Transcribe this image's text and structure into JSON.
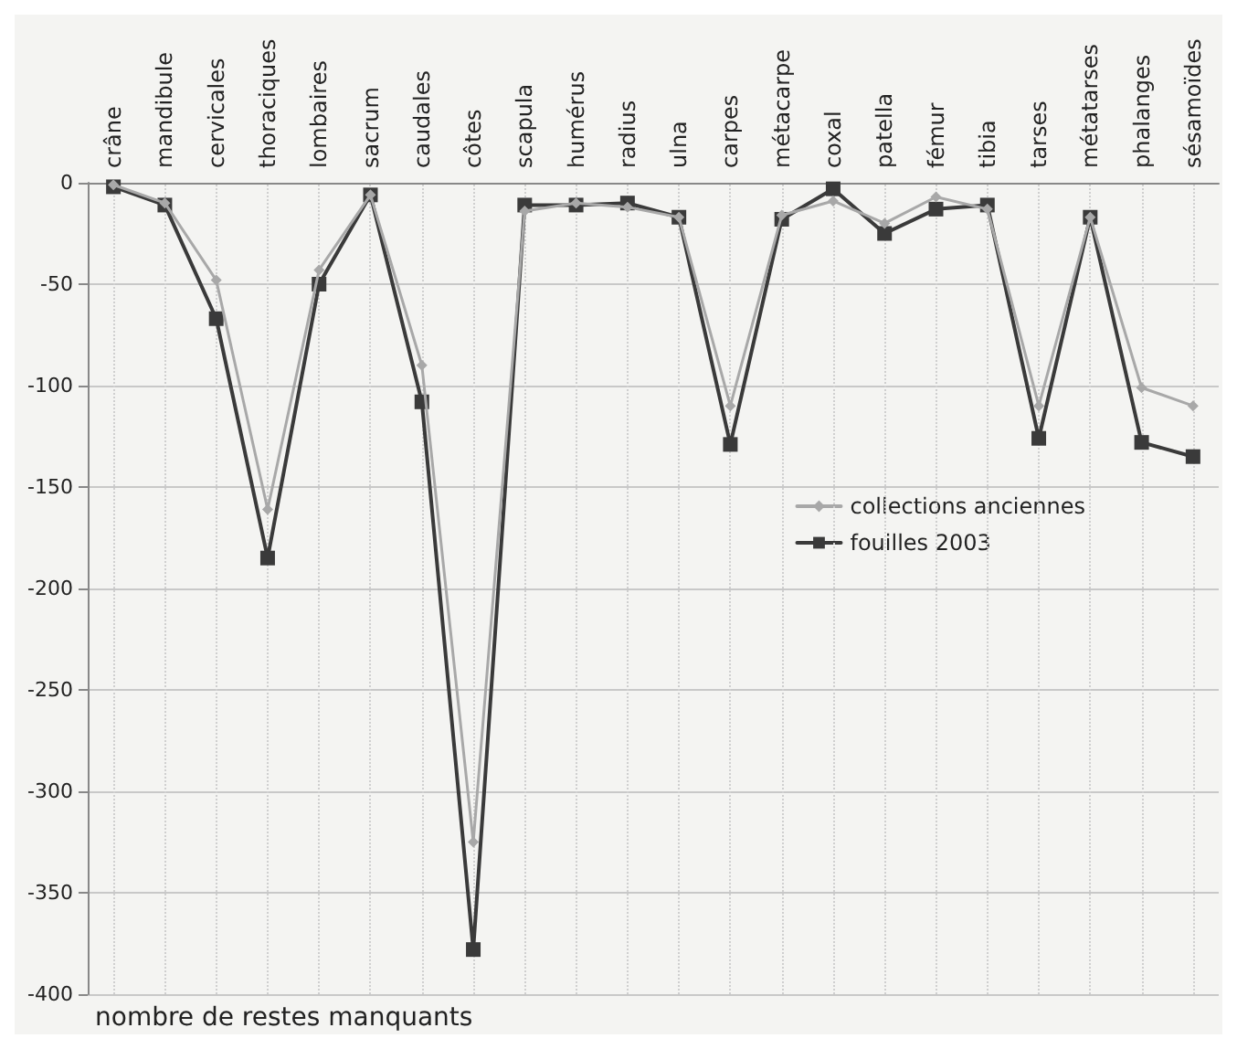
{
  "chart_data": {
    "type": "line",
    "annotations": [
      "nombre de restes manquants"
    ],
    "categories": [
      "crâne",
      "mandibule",
      "cervicales",
      "thoraciques",
      "lombaires",
      "sacrum",
      "caudales",
      "côtes",
      "scapula",
      "humérus",
      "radius",
      "ulna",
      "carpes",
      "métacarpe",
      "coxal",
      "patella",
      "fémur",
      "tibia",
      "tarses",
      "métatarses",
      "phalanges",
      "sésamoïdes"
    ],
    "series": [
      {
        "name": "collections anciennes",
        "color": "#a8a8a8",
        "marker": "diamond",
        "values": [
          -1,
          -10,
          -48,
          -161,
          -43,
          -6,
          -90,
          -325,
          -14,
          -10,
          -12,
          -17,
          -110,
          -16,
          -9,
          -20,
          -7,
          -13,
          -110,
          -17,
          -101,
          -110
        ]
      },
      {
        "name": "fouilles 2003",
        "color": "#3a3a3a",
        "marker": "square",
        "values": [
          -2,
          -11,
          -67,
          -185,
          -50,
          -6,
          -108,
          -378,
          -11,
          -11,
          -10,
          -17,
          -129,
          -18,
          -3,
          -25,
          -13,
          -11,
          -126,
          -17,
          -128,
          -135
        ]
      }
    ],
    "ylim": [
      -400,
      0
    ],
    "yticks": [
      -400,
      -350,
      -300,
      -250,
      -200,
      -150,
      -100,
      -50,
      0
    ],
    "grid": true,
    "legend": "center right",
    "line_style": "solid"
  }
}
